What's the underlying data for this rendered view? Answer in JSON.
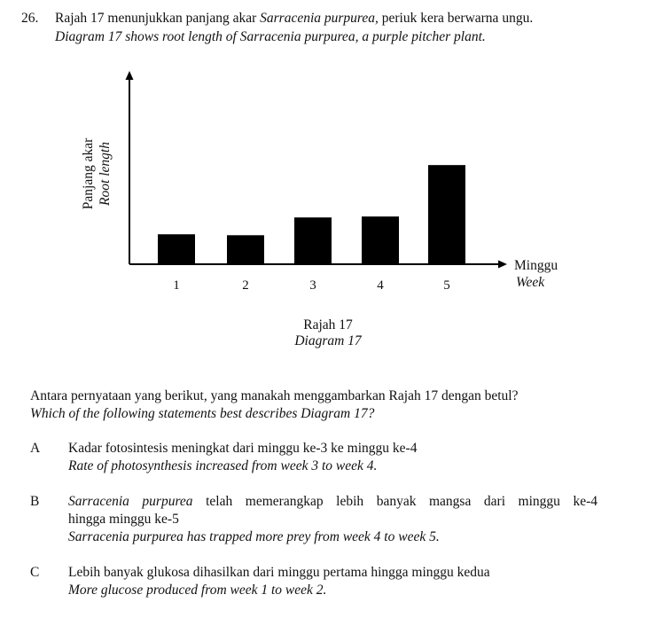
{
  "question": {
    "number": "26.",
    "stem_ms_prefix": "Rajah 17 menunjukkan panjang akar ",
    "stem_ms_species": "Sarracenia purpurea,",
    "stem_ms_suffix": " periuk kera berwarna ungu.",
    "stem_en": "Diagram 17 shows root length of Sarracenia purpurea, a purple pitcher plant."
  },
  "chart_data": {
    "type": "bar",
    "categories": [
      "1",
      "2",
      "3",
      "4",
      "5"
    ],
    "values": [
      1.6,
      1.55,
      2.5,
      2.55,
      5.3
    ],
    "ylim": [
      0,
      10
    ],
    "ylabel_ms": "Panjang akar",
    "ylabel_en": "Root length",
    "xlabel_ms": "Minggu",
    "xlabel_en": "Week",
    "bar_color": "#000000",
    "y_tick_labels": false
  },
  "caption": {
    "ms": "Rajah 17",
    "en": "Diagram 17"
  },
  "prompt": {
    "ms": "Antara pernyataan yang berikut, yang manakah menggambarkan Rajah 17 dengan betul?",
    "en": "Which of the following statements best describes Diagram 17?"
  },
  "options": {
    "A": {
      "letter": "A",
      "ms": "Kadar fotosintesis meningkat dari minggu ke-3 ke minggu ke-4",
      "en": "Rate of photosynthesis increased from week 3 to week 4."
    },
    "B": {
      "letter": "B",
      "ms_line1_species": "Sarracenia purpurea",
      "ms_line1_rest": "telah memerangkap lebih banyak mangsa dari minggu ke-4",
      "ms_line2": "hingga minggu ke-5",
      "en": "Sarracenia purpurea has trapped more prey from week 4 to week 5."
    },
    "C": {
      "letter": "C",
      "ms": "Lebih banyak glukosa dihasilkan dari minggu pertama hingga minggu kedua",
      "en": "More glucose produced from week 1 to week 2."
    }
  }
}
